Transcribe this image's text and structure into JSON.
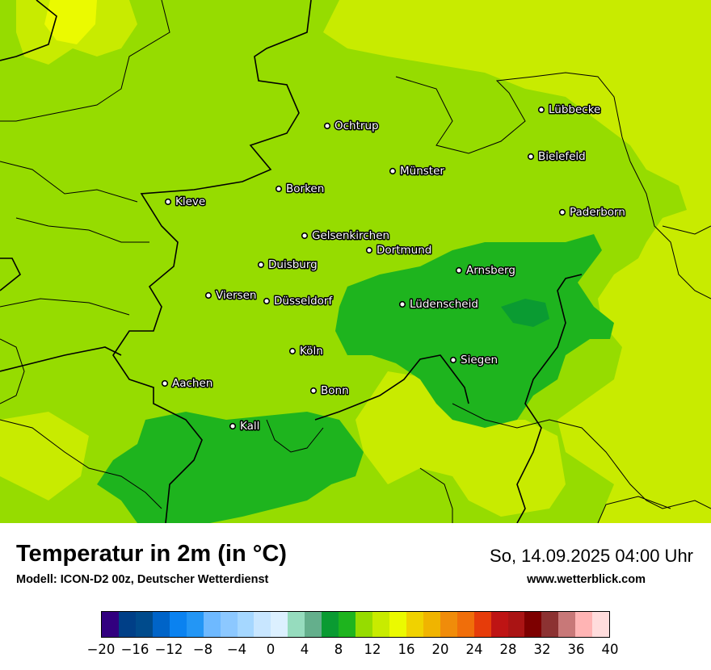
{
  "title": "Temperatur in 2m (in °C)",
  "model": "Modell: ICON-D2 00z, Deutscher Wetterdienst",
  "datetime": "So, 14.09.2025 04:00 Uhr",
  "website": "www.wetterblick.com",
  "cities": [
    {
      "name": "Lübbecke"
    },
    {
      "name": "Ochtrup"
    },
    {
      "name": "Bielefeld"
    },
    {
      "name": "Münster"
    },
    {
      "name": "Borken"
    },
    {
      "name": "Kleve"
    },
    {
      "name": "Paderborn"
    },
    {
      "name": "Gelsenkirchen"
    },
    {
      "name": "Dortmund"
    },
    {
      "name": "Duisburg"
    },
    {
      "name": "Arnsberg"
    },
    {
      "name": "Viersen"
    },
    {
      "name": "Düsseldorf"
    },
    {
      "name": "Lüdenscheid"
    },
    {
      "name": "Köln"
    },
    {
      "name": "Siegen"
    },
    {
      "name": "Aachen"
    },
    {
      "name": "Bonn"
    },
    {
      "name": "Kall"
    }
  ],
  "colorbar": {
    "min": -20,
    "max": 40,
    "step": 2,
    "colors": [
      "#32007f",
      "#003f87",
      "#004b8c",
      "#0064c8",
      "#0a82f0",
      "#2396f5",
      "#6eb9ff",
      "#8cc8ff",
      "#a5d7ff",
      "#c8e6ff",
      "#dcf0ff",
      "#96dcbe",
      "#64af8c",
      "#0a9b32",
      "#1eb41e",
      "#96dc00",
      "#c8eb00",
      "#ebfa00",
      "#f0d200",
      "#f0b400",
      "#f08c0a",
      "#f06e0a",
      "#e63c0a",
      "#be1414",
      "#aa1414",
      "#7d0000",
      "#8c3232",
      "#c87878",
      "#ffb4b4",
      "#ffdcdc"
    ],
    "tick_labels": [
      "−20",
      "−16",
      "−12",
      "−8",
      "−4",
      "0",
      "4",
      "8",
      "12",
      "16",
      "20",
      "24",
      "28",
      "32",
      "36",
      "40"
    ]
  },
  "map_colors": {
    "t10_12": "#96dc00",
    "t12_14": "#c8eb00",
    "t14_16": "#ebfa00",
    "t8_10": "#1eb41e",
    "t6_8": "#0a9b32"
  }
}
